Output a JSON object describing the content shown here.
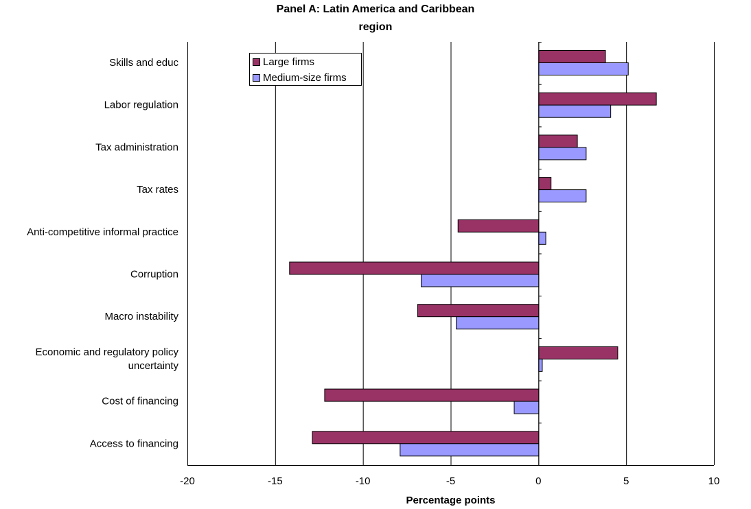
{
  "chart_data": {
    "type": "bar",
    "orientation": "horizontal",
    "title_line1": "Panel A: Latin America and Caribbean",
    "title_line2": "region",
    "xlabel": "Percentage points",
    "ylabel": "",
    "xlim": [
      -20,
      10
    ],
    "xticks": [
      -20,
      -15,
      -10,
      -5,
      0,
      5,
      10
    ],
    "xtick_labels": [
      "-20",
      "-15",
      "-10",
      "-5",
      "0",
      "5",
      "10"
    ],
    "grid": "vertical major gridlines",
    "legend_position": "top-left inside plot",
    "categories": [
      [
        "Skills and educ"
      ],
      [
        "Labor regulation"
      ],
      [
        "Tax administration"
      ],
      [
        "Tax rates"
      ],
      [
        "Anti-competitive informal practice"
      ],
      [
        "Corruption"
      ],
      [
        "Macro instability"
      ],
      [
        "Economic and regulatory policy",
        "uncertainty"
      ],
      [
        "Cost of financing"
      ],
      [
        "Access to financing"
      ]
    ],
    "series": [
      {
        "name": "Large firms",
        "color": "#993366",
        "values": [
          3.8,
          6.7,
          2.2,
          0.7,
          -4.6,
          -14.2,
          -6.9,
          4.5,
          -12.2,
          -12.9
        ]
      },
      {
        "name": "Medium-size firms",
        "color": "#9999ff",
        "values": [
          5.1,
          4.1,
          2.7,
          2.7,
          0.4,
          -6.7,
          -4.7,
          0.2,
          -1.4,
          -7.9
        ]
      }
    ]
  }
}
